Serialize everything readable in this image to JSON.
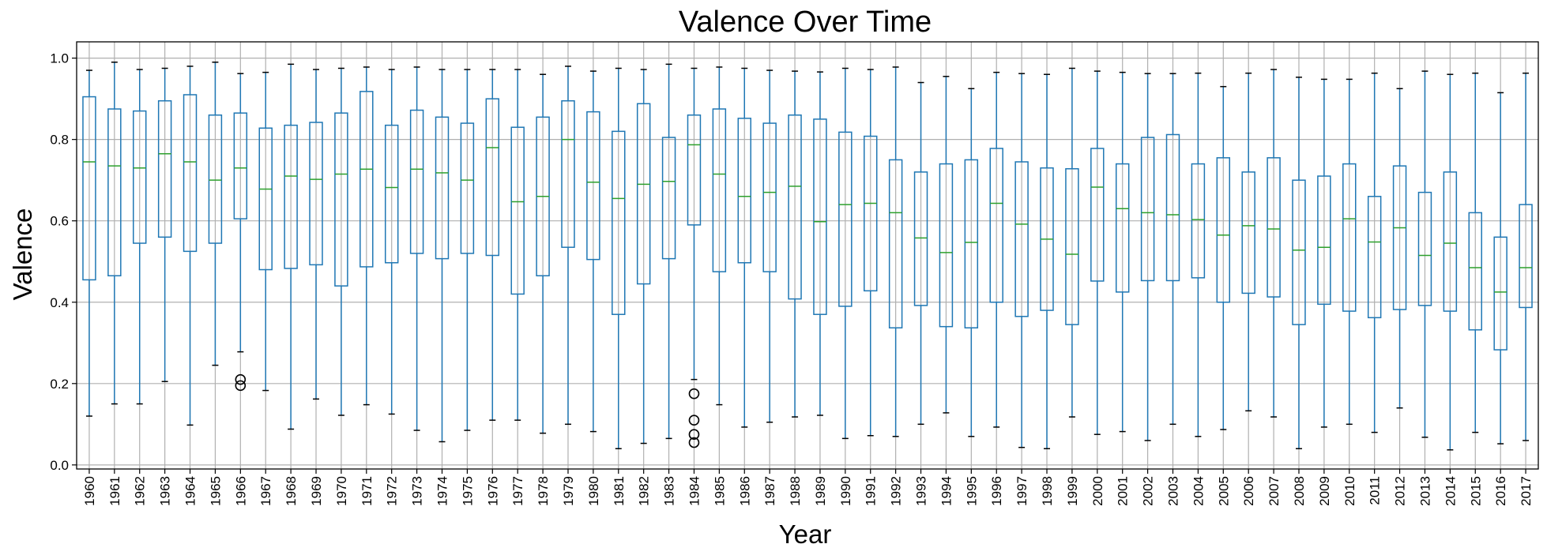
{
  "chart_data": {
    "type": "boxplot",
    "title": "Valence Over Time",
    "xlabel": "Year",
    "ylabel": "Valence",
    "ylim": [
      -0.01,
      1.04
    ],
    "yticks": [
      0.0,
      0.2,
      0.4,
      0.6,
      0.8,
      1.0
    ],
    "ytick_labels": [
      "0.0",
      "0.2",
      "0.4",
      "0.6",
      "0.8",
      "1.0"
    ],
    "grid": true,
    "colors": {
      "box": "#1f77b4",
      "median": "#2ca02c",
      "flier": "#000000",
      "grid": "#b0b0b0",
      "axes": "#000000"
    },
    "categories": [
      "1960",
      "1961",
      "1962",
      "1963",
      "1964",
      "1965",
      "1966",
      "1967",
      "1968",
      "1969",
      "1970",
      "1971",
      "1972",
      "1973",
      "1974",
      "1975",
      "1976",
      "1977",
      "1978",
      "1979",
      "1980",
      "1981",
      "1982",
      "1983",
      "1984",
      "1985",
      "1986",
      "1987",
      "1988",
      "1989",
      "1990",
      "1991",
      "1992",
      "1993",
      "1994",
      "1995",
      "1996",
      "1997",
      "1998",
      "1999",
      "2000",
      "2001",
      "2002",
      "2003",
      "2004",
      "2005",
      "2006",
      "2007",
      "2008",
      "2009",
      "2010",
      "2011",
      "2012",
      "2013",
      "2014",
      "2015",
      "2016",
      "2017"
    ],
    "boxes": [
      {
        "whislo": 0.12,
        "q1": 0.455,
        "med": 0.745,
        "q3": 0.905,
        "whishi": 0.97,
        "fliers": []
      },
      {
        "whislo": 0.15,
        "q1": 0.465,
        "med": 0.735,
        "q3": 0.875,
        "whishi": 0.99,
        "fliers": []
      },
      {
        "whislo": 0.15,
        "q1": 0.545,
        "med": 0.73,
        "q3": 0.87,
        "whishi": 0.972,
        "fliers": []
      },
      {
        "whislo": 0.205,
        "q1": 0.56,
        "med": 0.765,
        "q3": 0.895,
        "whishi": 0.975,
        "fliers": []
      },
      {
        "whislo": 0.098,
        "q1": 0.525,
        "med": 0.745,
        "q3": 0.91,
        "whishi": 0.98,
        "fliers": []
      },
      {
        "whislo": 0.245,
        "q1": 0.545,
        "med": 0.7,
        "q3": 0.86,
        "whishi": 0.99,
        "fliers": []
      },
      {
        "whislo": 0.278,
        "q1": 0.605,
        "med": 0.73,
        "q3": 0.865,
        "whishi": 0.962,
        "fliers": [
          0.21,
          0.195
        ]
      },
      {
        "whislo": 0.183,
        "q1": 0.48,
        "med": 0.678,
        "q3": 0.828,
        "whishi": 0.965,
        "fliers": []
      },
      {
        "whislo": 0.088,
        "q1": 0.483,
        "med": 0.71,
        "q3": 0.835,
        "whishi": 0.985,
        "fliers": []
      },
      {
        "whislo": 0.162,
        "q1": 0.492,
        "med": 0.702,
        "q3": 0.842,
        "whishi": 0.972,
        "fliers": []
      },
      {
        "whislo": 0.122,
        "q1": 0.44,
        "med": 0.715,
        "q3": 0.865,
        "whishi": 0.975,
        "fliers": []
      },
      {
        "whislo": 0.148,
        "q1": 0.487,
        "med": 0.727,
        "q3": 0.918,
        "whishi": 0.978,
        "fliers": []
      },
      {
        "whislo": 0.125,
        "q1": 0.497,
        "med": 0.682,
        "q3": 0.835,
        "whishi": 0.972,
        "fliers": []
      },
      {
        "whislo": 0.085,
        "q1": 0.52,
        "med": 0.727,
        "q3": 0.872,
        "whishi": 0.978,
        "fliers": []
      },
      {
        "whislo": 0.057,
        "q1": 0.507,
        "med": 0.718,
        "q3": 0.855,
        "whishi": 0.972,
        "fliers": []
      },
      {
        "whislo": 0.085,
        "q1": 0.52,
        "med": 0.7,
        "q3": 0.84,
        "whishi": 0.972,
        "fliers": []
      },
      {
        "whislo": 0.11,
        "q1": 0.515,
        "med": 0.78,
        "q3": 0.9,
        "whishi": 0.972,
        "fliers": []
      },
      {
        "whislo": 0.11,
        "q1": 0.42,
        "med": 0.647,
        "q3": 0.83,
        "whishi": 0.972,
        "fliers": []
      },
      {
        "whislo": 0.078,
        "q1": 0.465,
        "med": 0.66,
        "q3": 0.855,
        "whishi": 0.96,
        "fliers": []
      },
      {
        "whislo": 0.1,
        "q1": 0.535,
        "med": 0.8,
        "q3": 0.895,
        "whishi": 0.98,
        "fliers": []
      },
      {
        "whislo": 0.082,
        "q1": 0.505,
        "med": 0.695,
        "q3": 0.868,
        "whishi": 0.968,
        "fliers": []
      },
      {
        "whislo": 0.04,
        "q1": 0.37,
        "med": 0.655,
        "q3": 0.82,
        "whishi": 0.975,
        "fliers": []
      },
      {
        "whislo": 0.053,
        "q1": 0.445,
        "med": 0.69,
        "q3": 0.888,
        "whishi": 0.972,
        "fliers": []
      },
      {
        "whislo": 0.065,
        "q1": 0.507,
        "med": 0.697,
        "q3": 0.805,
        "whishi": 0.985,
        "fliers": []
      },
      {
        "whislo": 0.21,
        "q1": 0.59,
        "med": 0.787,
        "q3": 0.86,
        "whishi": 0.975,
        "fliers": [
          0.175,
          0.11,
          0.075,
          0.055
        ]
      },
      {
        "whislo": 0.148,
        "q1": 0.475,
        "med": 0.715,
        "q3": 0.875,
        "whishi": 0.978,
        "fliers": []
      },
      {
        "whislo": 0.093,
        "q1": 0.497,
        "med": 0.66,
        "q3": 0.852,
        "whishi": 0.975,
        "fliers": []
      },
      {
        "whislo": 0.105,
        "q1": 0.475,
        "med": 0.67,
        "q3": 0.84,
        "whishi": 0.97,
        "fliers": []
      },
      {
        "whislo": 0.118,
        "q1": 0.408,
        "med": 0.685,
        "q3": 0.86,
        "whishi": 0.968,
        "fliers": []
      },
      {
        "whislo": 0.122,
        "q1": 0.37,
        "med": 0.598,
        "q3": 0.85,
        "whishi": 0.966,
        "fliers": []
      },
      {
        "whislo": 0.065,
        "q1": 0.39,
        "med": 0.64,
        "q3": 0.818,
        "whishi": 0.975,
        "fliers": []
      },
      {
        "whislo": 0.072,
        "q1": 0.428,
        "med": 0.643,
        "q3": 0.808,
        "whishi": 0.972,
        "fliers": []
      },
      {
        "whislo": 0.07,
        "q1": 0.337,
        "med": 0.62,
        "q3": 0.75,
        "whishi": 0.978,
        "fliers": []
      },
      {
        "whislo": 0.1,
        "q1": 0.392,
        "med": 0.558,
        "q3": 0.72,
        "whishi": 0.94,
        "fliers": []
      },
      {
        "whislo": 0.128,
        "q1": 0.34,
        "med": 0.522,
        "q3": 0.74,
        "whishi": 0.955,
        "fliers": []
      },
      {
        "whislo": 0.07,
        "q1": 0.337,
        "med": 0.547,
        "q3": 0.75,
        "whishi": 0.925,
        "fliers": []
      },
      {
        "whislo": 0.093,
        "q1": 0.4,
        "med": 0.643,
        "q3": 0.778,
        "whishi": 0.965,
        "fliers": []
      },
      {
        "whislo": 0.043,
        "q1": 0.365,
        "med": 0.592,
        "q3": 0.745,
        "whishi": 0.962,
        "fliers": []
      },
      {
        "whislo": 0.04,
        "q1": 0.38,
        "med": 0.555,
        "q3": 0.73,
        "whishi": 0.96,
        "fliers": []
      },
      {
        "whislo": 0.118,
        "q1": 0.345,
        "med": 0.518,
        "q3": 0.728,
        "whishi": 0.975,
        "fliers": []
      },
      {
        "whislo": 0.075,
        "q1": 0.452,
        "med": 0.683,
        "q3": 0.778,
        "whishi": 0.968,
        "fliers": []
      },
      {
        "whislo": 0.082,
        "q1": 0.425,
        "med": 0.63,
        "q3": 0.74,
        "whishi": 0.965,
        "fliers": []
      },
      {
        "whislo": 0.06,
        "q1": 0.453,
        "med": 0.62,
        "q3": 0.805,
        "whishi": 0.962,
        "fliers": []
      },
      {
        "whislo": 0.1,
        "q1": 0.453,
        "med": 0.615,
        "q3": 0.812,
        "whishi": 0.962,
        "fliers": []
      },
      {
        "whislo": 0.07,
        "q1": 0.46,
        "med": 0.603,
        "q3": 0.74,
        "whishi": 0.963,
        "fliers": []
      },
      {
        "whislo": 0.087,
        "q1": 0.4,
        "med": 0.565,
        "q3": 0.755,
        "whishi": 0.93,
        "fliers": []
      },
      {
        "whislo": 0.133,
        "q1": 0.422,
        "med": 0.588,
        "q3": 0.72,
        "whishi": 0.963,
        "fliers": []
      },
      {
        "whislo": 0.118,
        "q1": 0.413,
        "med": 0.58,
        "q3": 0.755,
        "whishi": 0.972,
        "fliers": []
      },
      {
        "whislo": 0.04,
        "q1": 0.345,
        "med": 0.528,
        "q3": 0.7,
        "whishi": 0.953,
        "fliers": []
      },
      {
        "whislo": 0.093,
        "q1": 0.395,
        "med": 0.535,
        "q3": 0.71,
        "whishi": 0.948,
        "fliers": []
      },
      {
        "whislo": 0.1,
        "q1": 0.378,
        "med": 0.605,
        "q3": 0.74,
        "whishi": 0.948,
        "fliers": []
      },
      {
        "whislo": 0.08,
        "q1": 0.362,
        "med": 0.548,
        "q3": 0.66,
        "whishi": 0.963,
        "fliers": []
      },
      {
        "whislo": 0.14,
        "q1": 0.382,
        "med": 0.583,
        "q3": 0.735,
        "whishi": 0.925,
        "fliers": []
      },
      {
        "whislo": 0.068,
        "q1": 0.392,
        "med": 0.515,
        "q3": 0.67,
        "whishi": 0.968,
        "fliers": []
      },
      {
        "whislo": 0.037,
        "q1": 0.378,
        "med": 0.545,
        "q3": 0.72,
        "whishi": 0.96,
        "fliers": []
      },
      {
        "whislo": 0.08,
        "q1": 0.332,
        "med": 0.485,
        "q3": 0.62,
        "whishi": 0.963,
        "fliers": []
      },
      {
        "whislo": 0.052,
        "q1": 0.283,
        "med": 0.425,
        "q3": 0.56,
        "whishi": 0.915,
        "fliers": []
      },
      {
        "whislo": 0.06,
        "q1": 0.387,
        "med": 0.485,
        "q3": 0.64,
        "whishi": 0.963,
        "fliers": []
      }
    ]
  }
}
